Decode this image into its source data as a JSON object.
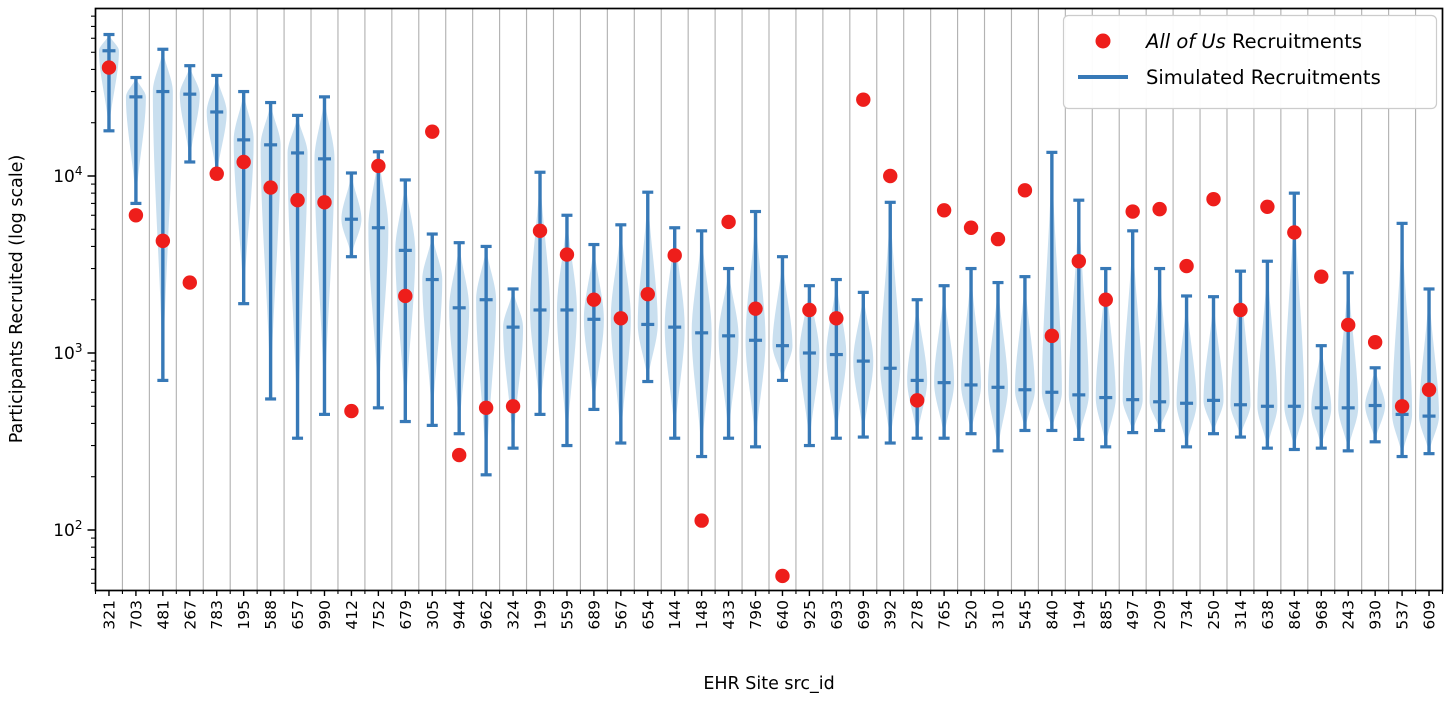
{
  "chart_data": {
    "type": "violin",
    "title": "",
    "xlabel": "EHR Site src_id",
    "ylabel": "Participants Recruited (log scale)",
    "yscale": "log",
    "ylim": [
      46,
      89000
    ],
    "ytick_exponents": [
      2,
      3,
      4
    ],
    "grid": "vertical separators between categories",
    "legend": {
      "position": "upper right",
      "entries": [
        {
          "marker": "red-dot",
          "label_italic": "All of Us",
          "label_rest": " Recruitments"
        },
        {
          "marker": "blue-line",
          "label": "Simulated Recruitments"
        }
      ]
    },
    "colors": {
      "all_of_us_dot": "#ee1e1b",
      "simulated_line": "#3779b7",
      "violin_fill": "#a8cbe5",
      "gridline": "#b3b3b3",
      "axis": "#000000",
      "legend_border": "#cccccc",
      "background": "#ffffff"
    },
    "series_names": [
      "All of Us Recruitments",
      "Simulated Recruitments"
    ],
    "sites": [
      {
        "id": "321",
        "all_of_us": 41000,
        "sim_min": 18000,
        "sim_median": 51000,
        "sim_max": 63000
      },
      {
        "id": "703",
        "all_of_us": 6000,
        "sim_min": 7000,
        "sim_median": 28000,
        "sim_max": 36000
      },
      {
        "id": "481",
        "all_of_us": 4300,
        "sim_min": 700,
        "sim_median": 30000,
        "sim_max": 52000
      },
      {
        "id": "267",
        "all_of_us": 2500,
        "sim_min": 12000,
        "sim_median": 29000,
        "sim_max": 42000
      },
      {
        "id": "783",
        "all_of_us": 10300,
        "sim_min": 9800,
        "sim_median": 23000,
        "sim_max": 37000
      },
      {
        "id": "195",
        "all_of_us": 12000,
        "sim_min": 1900,
        "sim_median": 16000,
        "sim_max": 30000
      },
      {
        "id": "588",
        "all_of_us": 8600,
        "sim_min": 550,
        "sim_median": 15000,
        "sim_max": 26000
      },
      {
        "id": "657",
        "all_of_us": 7300,
        "sim_min": 330,
        "sim_median": 13500,
        "sim_max": 22000
      },
      {
        "id": "990",
        "all_of_us": 7100,
        "sim_min": 450,
        "sim_median": 12500,
        "sim_max": 28000
      },
      {
        "id": "412",
        "all_of_us": 470,
        "sim_min": 3500,
        "sim_median": 5700,
        "sim_max": 10400
      },
      {
        "id": "752",
        "all_of_us": 11400,
        "sim_min": 490,
        "sim_median": 5100,
        "sim_max": 13700
      },
      {
        "id": "679",
        "all_of_us": 2100,
        "sim_min": 410,
        "sim_median": 3800,
        "sim_max": 9500
      },
      {
        "id": "305",
        "all_of_us": 17800,
        "sim_min": 390,
        "sim_median": 2600,
        "sim_max": 4700
      },
      {
        "id": "944",
        "all_of_us": 265,
        "sim_min": 350,
        "sim_median": 1800,
        "sim_max": 4200
      },
      {
        "id": "962",
        "all_of_us": 490,
        "sim_min": 205,
        "sim_median": 2000,
        "sim_max": 4000
      },
      {
        "id": "324",
        "all_of_us": 500,
        "sim_min": 290,
        "sim_median": 1400,
        "sim_max": 2300
      },
      {
        "id": "199",
        "all_of_us": 4900,
        "sim_min": 450,
        "sim_median": 1750,
        "sim_max": 10500
      },
      {
        "id": "559",
        "all_of_us": 3600,
        "sim_min": 300,
        "sim_median": 1750,
        "sim_max": 6000
      },
      {
        "id": "689",
        "all_of_us": 2000,
        "sim_min": 480,
        "sim_median": 1550,
        "sim_max": 4100
      },
      {
        "id": "567",
        "all_of_us": 1570,
        "sim_min": 310,
        "sim_median": 1580,
        "sim_max": 5300
      },
      {
        "id": "654",
        "all_of_us": 2150,
        "sim_min": 690,
        "sim_median": 1450,
        "sim_max": 8100
      },
      {
        "id": "144",
        "all_of_us": 3560,
        "sim_min": 330,
        "sim_median": 1400,
        "sim_max": 5100
      },
      {
        "id": "148",
        "all_of_us": 113,
        "sim_min": 260,
        "sim_median": 1300,
        "sim_max": 4900
      },
      {
        "id": "433",
        "all_of_us": 5500,
        "sim_min": 330,
        "sim_median": 1250,
        "sim_max": 3000
      },
      {
        "id": "796",
        "all_of_us": 1780,
        "sim_min": 295,
        "sim_median": 1180,
        "sim_max": 6300
      },
      {
        "id": "640",
        "all_of_us": 55,
        "sim_min": 700,
        "sim_median": 1100,
        "sim_max": 3500
      },
      {
        "id": "925",
        "all_of_us": 1750,
        "sim_min": 300,
        "sim_median": 1000,
        "sim_max": 2400
      },
      {
        "id": "693",
        "all_of_us": 1570,
        "sim_min": 330,
        "sim_median": 980,
        "sim_max": 2600
      },
      {
        "id": "699",
        "all_of_us": 27000,
        "sim_min": 335,
        "sim_median": 900,
        "sim_max": 2200
      },
      {
        "id": "392",
        "all_of_us": 10000,
        "sim_min": 310,
        "sim_median": 820,
        "sim_max": 7100
      },
      {
        "id": "278",
        "all_of_us": 540,
        "sim_min": 330,
        "sim_median": 700,
        "sim_max": 2000
      },
      {
        "id": "765",
        "all_of_us": 6400,
        "sim_min": 330,
        "sim_median": 680,
        "sim_max": 2400
      },
      {
        "id": "520",
        "all_of_us": 5100,
        "sim_min": 350,
        "sim_median": 660,
        "sim_max": 3000
      },
      {
        "id": "310",
        "all_of_us": 4400,
        "sim_min": 280,
        "sim_median": 640,
        "sim_max": 2500
      },
      {
        "id": "545",
        "all_of_us": 8300,
        "sim_min": 365,
        "sim_median": 620,
        "sim_max": 2700
      },
      {
        "id": "840",
        "all_of_us": 1250,
        "sim_min": 365,
        "sim_median": 600,
        "sim_max": 13600
      },
      {
        "id": "194",
        "all_of_us": 3300,
        "sim_min": 325,
        "sim_median": 580,
        "sim_max": 7300
      },
      {
        "id": "885",
        "all_of_us": 2000,
        "sim_min": 295,
        "sim_median": 560,
        "sim_max": 3000
      },
      {
        "id": "497",
        "all_of_us": 6300,
        "sim_min": 355,
        "sim_median": 545,
        "sim_max": 4900
      },
      {
        "id": "209",
        "all_of_us": 6500,
        "sim_min": 365,
        "sim_median": 530,
        "sim_max": 3000
      },
      {
        "id": "734",
        "all_of_us": 3100,
        "sim_min": 295,
        "sim_median": 520,
        "sim_max": 2100
      },
      {
        "id": "250",
        "all_of_us": 7400,
        "sim_min": 350,
        "sim_median": 540,
        "sim_max": 2080
      },
      {
        "id": "314",
        "all_of_us": 1750,
        "sim_min": 335,
        "sim_median": 510,
        "sim_max": 2900
      },
      {
        "id": "638",
        "all_of_us": 6700,
        "sim_min": 290,
        "sim_median": 500,
        "sim_max": 3300
      },
      {
        "id": "864",
        "all_of_us": 4800,
        "sim_min": 285,
        "sim_median": 500,
        "sim_max": 8000
      },
      {
        "id": "968",
        "all_of_us": 2700,
        "sim_min": 290,
        "sim_median": 490,
        "sim_max": 1100
      },
      {
        "id": "243",
        "all_of_us": 1440,
        "sim_min": 280,
        "sim_median": 490,
        "sim_max": 2840
      },
      {
        "id": "930",
        "all_of_us": 1150,
        "sim_min": 315,
        "sim_median": 505,
        "sim_max": 825
      },
      {
        "id": "537",
        "all_of_us": 500,
        "sim_min": 260,
        "sim_median": 450,
        "sim_max": 5400
      },
      {
        "id": "609",
        "all_of_us": 620,
        "sim_min": 270,
        "sim_median": 440,
        "sim_max": 2300
      }
    ]
  }
}
